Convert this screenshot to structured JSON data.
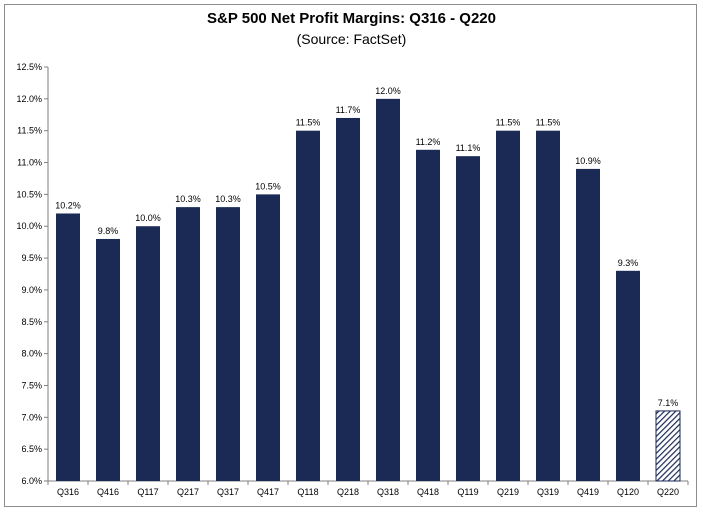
{
  "chart_data": {
    "type": "bar",
    "title": "S&P 500 Net Profit Margins: Q316 - Q220",
    "subtitle": "(Source: FactSet)",
    "xlabel": "",
    "ylabel": "",
    "categories": [
      "Q316",
      "Q416",
      "Q117",
      "Q217",
      "Q317",
      "Q417",
      "Q118",
      "Q218",
      "Q318",
      "Q418",
      "Q119",
      "Q219",
      "Q319",
      "Q419",
      "Q120",
      "Q220"
    ],
    "values": [
      10.2,
      9.8,
      10.0,
      10.3,
      10.3,
      10.5,
      11.5,
      11.7,
      12.0,
      11.2,
      11.1,
      11.5,
      11.5,
      10.9,
      9.3,
      7.1
    ],
    "value_labels": [
      "10.2%",
      "9.8%",
      "10.0%",
      "10.3%",
      "10.3%",
      "10.5%",
      "11.5%",
      "11.7%",
      "12.0%",
      "11.2%",
      "11.1%",
      "11.5%",
      "11.5%",
      "10.9%",
      "9.3%",
      "7.1%"
    ],
    "estimate_flags": [
      false,
      false,
      false,
      false,
      false,
      false,
      false,
      false,
      false,
      false,
      false,
      false,
      false,
      false,
      false,
      true
    ],
    "ylim": [
      6.0,
      12.5
    ],
    "yticks": [
      6.0,
      6.5,
      7.0,
      7.5,
      8.0,
      8.5,
      9.0,
      9.5,
      10.0,
      10.5,
      11.0,
      11.5,
      12.0,
      12.5
    ],
    "ytick_labels": [
      "6.0%",
      "6.5%",
      "7.0%",
      "7.5%",
      "8.0%",
      "8.5%",
      "9.0%",
      "9.5%",
      "10.0%",
      "10.5%",
      "11.0%",
      "11.5%",
      "12.0%",
      "12.5%"
    ],
    "grid": false,
    "bar_color": "#1b2a55",
    "estimate_color": "#1b2a55"
  }
}
